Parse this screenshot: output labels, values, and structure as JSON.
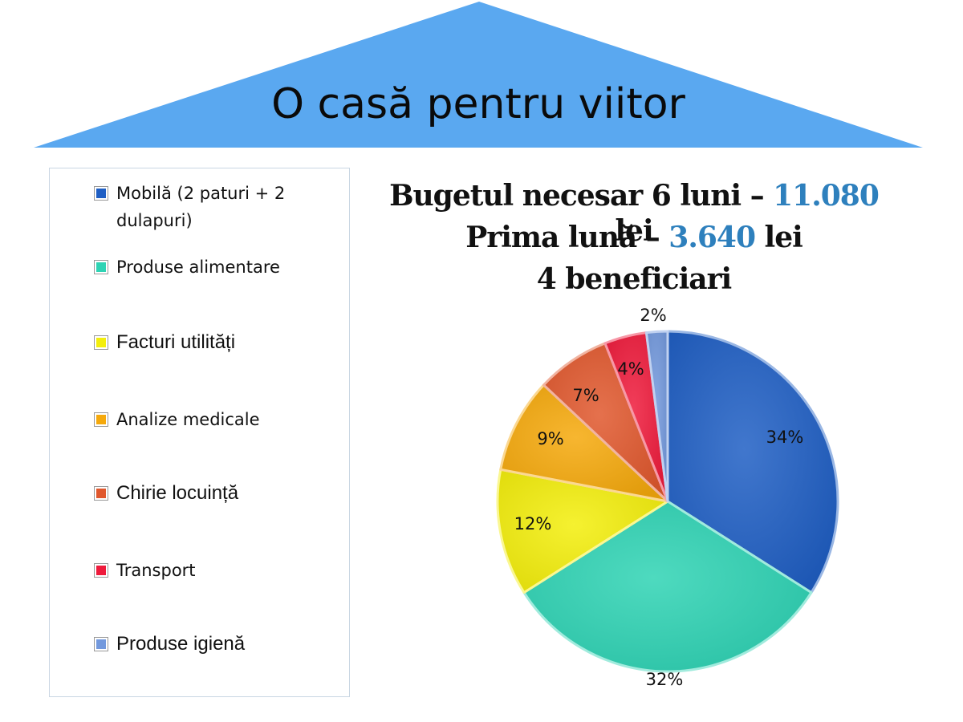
{
  "title": "O casă pentru viitor",
  "budget": {
    "line1_prefix": "Bugetul necesar 6 luni – ",
    "line1_amount": "11.080",
    "line1_suffix": " lei",
    "line2_prefix": "Prima lună – ",
    "line2_amount": "3.640",
    "line2_suffix": " lei",
    "line3": "4 beneficiari"
  },
  "legend": [
    {
      "label": "Mobilă (2 paturi + 2 dulapuri)",
      "color": "#1f5fc4"
    },
    {
      "label": "Produse alimentare",
      "color": "#2fd3b4"
    },
    {
      "label": "Facturi utilități",
      "color": "#f3ee0c"
    },
    {
      "label": "Analize medicale",
      "color": "#f5a90c"
    },
    {
      "label": "Chirie locuință",
      "color": "#e0582e"
    },
    {
      "label": "Transport",
      "color": "#ee1b3c"
    },
    {
      "label": "Produse igienă",
      "color": "#7399dd"
    }
  ],
  "chart_data": {
    "type": "pie",
    "categories": [
      "Mobilă (2 paturi + 2 dulapuri)",
      "Produse alimentare",
      "Facturi utilități",
      "Analize medicale",
      "Chirie locuință",
      "Transport",
      "Produse igienă"
    ],
    "values": [
      34,
      32,
      12,
      9,
      7,
      4,
      2
    ],
    "labels": [
      "34%",
      "32%",
      "12%",
      "9%",
      "7%",
      "4%",
      "2%"
    ],
    "colors": [
      "#1f5fc4",
      "#2fd3b4",
      "#f3ee0c",
      "#f5a90c",
      "#e0582e",
      "#ee1b3c",
      "#7399dd"
    ],
    "legend_position": "left"
  }
}
